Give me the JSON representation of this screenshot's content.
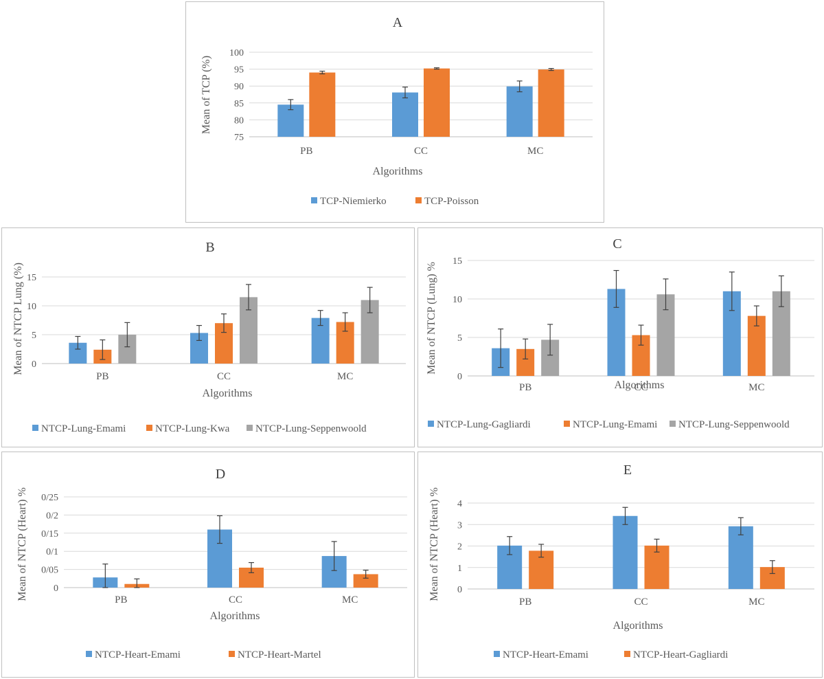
{
  "colors": {
    "blue": "#5b9bd5",
    "orange": "#ed7d31",
    "gray": "#a5a5a5"
  },
  "chart_data": [
    {
      "id": "A",
      "type": "bar",
      "title": "A",
      "xlabel": "Algorithms",
      "ylabel": "Mean of TCP (%)",
      "categories": [
        "PB",
        "CC",
        "MC"
      ],
      "ylim": [
        75,
        100
      ],
      "yticks": [
        75,
        80,
        85,
        90,
        95,
        100
      ],
      "yticklabels": [
        "75",
        "80",
        "85",
        "90",
        "95",
        "100"
      ],
      "grid": true,
      "legend": "bottom",
      "series": [
        {
          "name": "TCP-Niemierko",
          "color": "#5b9bd5",
          "values": [
            84.5,
            88.1,
            89.9
          ],
          "errors": [
            1.5,
            1.6,
            1.6
          ]
        },
        {
          "name": "TCP-Poisson",
          "color": "#ed7d31",
          "values": [
            94.0,
            95.2,
            94.9
          ],
          "errors": [
            0.4,
            0.2,
            0.3
          ]
        }
      ]
    },
    {
      "id": "B",
      "type": "bar",
      "title": "B",
      "xlabel": "Algorithms",
      "ylabel": "Mean of NTCP Lung (%)",
      "categories": [
        "PB",
        "CC",
        "MC"
      ],
      "ylim": [
        0,
        15
      ],
      "yticks": [
        0,
        5,
        10,
        15
      ],
      "yticklabels": [
        "0",
        "5",
        "10",
        "15"
      ],
      "grid": true,
      "legend": "bottom",
      "series": [
        {
          "name": "NTCP-Lung-Emami",
          "color": "#5b9bd5",
          "values": [
            3.6,
            5.3,
            7.9
          ],
          "errors": [
            1.1,
            1.3,
            1.3
          ]
        },
        {
          "name": "NTCP-Lung-Kwa",
          "color": "#ed7d31",
          "values": [
            2.4,
            7.0,
            7.2
          ],
          "errors": [
            1.7,
            1.6,
            1.6
          ]
        },
        {
          "name": "NTCP-Lung-Seppenwoold",
          "color": "#a5a5a5",
          "values": [
            5.0,
            11.5,
            11.0
          ],
          "errors": [
            2.1,
            2.2,
            2.2
          ]
        }
      ]
    },
    {
      "id": "C",
      "type": "bar",
      "title": "C",
      "xlabel": "Algorithms",
      "ylabel": "Mean of NTCP (Lung) %",
      "categories": [
        "PB",
        "CC",
        "MC"
      ],
      "ylim": [
        0,
        15
      ],
      "yticks": [
        0,
        5,
        10,
        15
      ],
      "yticklabels": [
        "0",
        "5",
        "10",
        "15"
      ],
      "grid": true,
      "legend": "bottom",
      "series": [
        {
          "name": "NTCP-Lung-Gagliardi",
          "color": "#5b9bd5",
          "values": [
            3.6,
            11.3,
            11.0
          ],
          "errors": [
            2.5,
            2.4,
            2.5
          ]
        },
        {
          "name": "NTCP-Lung-Emami",
          "color": "#ed7d31",
          "values": [
            3.5,
            5.3,
            7.8
          ],
          "errors": [
            1.3,
            1.3,
            1.3
          ]
        },
        {
          "name": "NTCP-Lung-Seppenwoold",
          "color": "#a5a5a5",
          "values": [
            4.7,
            10.6,
            11.0
          ],
          "errors": [
            2.0,
            2.0,
            2.0
          ]
        }
      ]
    },
    {
      "id": "D",
      "type": "bar",
      "title": "D",
      "xlabel": "Algorithms",
      "ylabel": "Mean of NTCP (Heart) %",
      "categories": [
        "PB",
        "CC",
        "MC"
      ],
      "ylim": [
        0,
        0.25
      ],
      "yticks": [
        0,
        0.05,
        0.1,
        0.15,
        0.2,
        0.25
      ],
      "yticklabels": [
        "0",
        "0/05",
        "0/1",
        "0/15",
        "0/2",
        "0/25"
      ],
      "grid": true,
      "legend": "bottom",
      "series": [
        {
          "name": "NTCP-Heart-Emami",
          "color": "#5b9bd5",
          "values": [
            0.028,
            0.16,
            0.087
          ],
          "errors": [
            0.037,
            0.038,
            0.04
          ]
        },
        {
          "name": "NTCP-Heart-Martel",
          "color": "#ed7d31",
          "values": [
            0.01,
            0.055,
            0.037
          ],
          "errors": [
            0.014,
            0.014,
            0.011
          ]
        }
      ]
    },
    {
      "id": "E",
      "type": "bar",
      "title": "E",
      "xlabel": "Algorithms",
      "ylabel": "Mean of NTCP (Heart) %",
      "categories": [
        "PB",
        "CC",
        "MC"
      ],
      "ylim": [
        0,
        4
      ],
      "yticks": [
        0,
        1,
        2,
        3,
        4
      ],
      "yticklabels": [
        "0",
        "1",
        "2",
        "3",
        "4"
      ],
      "grid": true,
      "legend": "bottom",
      "series": [
        {
          "name": "NTCP-Heart-Emami",
          "color": "#5b9bd5",
          "values": [
            2.02,
            3.4,
            2.92
          ],
          "errors": [
            0.42,
            0.4,
            0.4
          ]
        },
        {
          "name": "NTCP-Heart-Gagliardi",
          "color": "#ed7d31",
          "values": [
            1.78,
            2.02,
            1.02
          ],
          "errors": [
            0.3,
            0.3,
            0.3
          ]
        }
      ]
    }
  ]
}
